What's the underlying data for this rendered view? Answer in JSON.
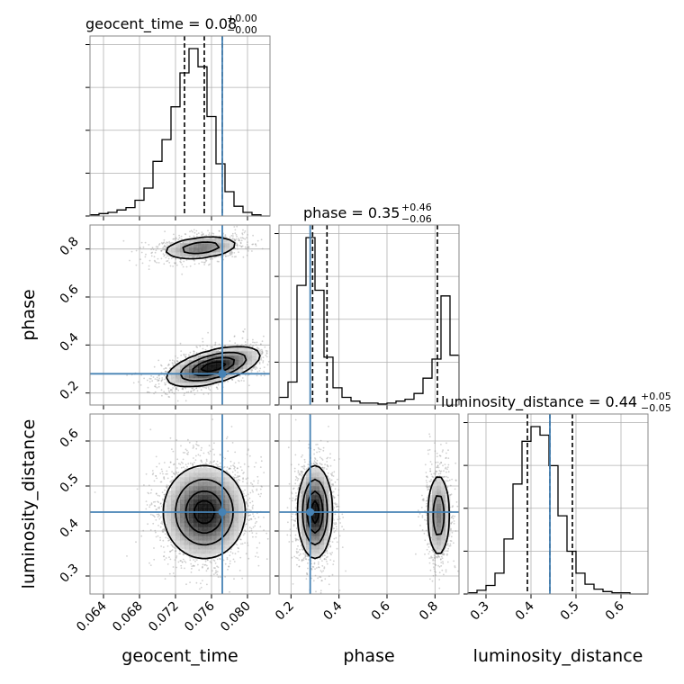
{
  "chart_data": {
    "type": "corner",
    "parameters": [
      {
        "name": "geocent_time",
        "label": "geocent_time",
        "range": [
          0.0625,
          0.0825
        ],
        "ticks": [
          0.064,
          0.068,
          0.072,
          0.076,
          0.08
        ],
        "tick_labels": [
          "0.064",
          "0.068",
          "0.072",
          "0.076",
          "0.080"
        ],
        "truth": 0.0772,
        "quantiles": [
          0.073,
          0.0752,
          0.0772
        ]
      },
      {
        "name": "phase",
        "label": "phase",
        "range": [
          0.15,
          0.9
        ],
        "ticks": [
          0.2,
          0.4,
          0.6,
          0.8
        ],
        "tick_labels": [
          "0.2",
          "0.4",
          "0.6",
          "0.8"
        ],
        "truth": 0.28,
        "quantiles": [
          0.29,
          0.35,
          0.81
        ]
      },
      {
        "name": "luminosity_distance",
        "label": "luminosity_distance",
        "range": [
          0.26,
          0.66
        ],
        "ticks": [
          0.3,
          0.4,
          0.5,
          0.6
        ],
        "tick_labels": [
          "0.3",
          "0.4",
          "0.5",
          "0.6"
        ],
        "truth": 0.442,
        "quantiles": [
          0.392,
          0.442,
          0.492
        ]
      }
    ],
    "titles": [
      {
        "base": "geocent_time = 0.08",
        "sup": "+0.00",
        "sub": "−0.00"
      },
      {
        "base": "phase = 0.35",
        "sup": "+0.46",
        "sub": "−0.06"
      },
      {
        "base": "luminosity_distance = 0.44",
        "sup": "+0.05",
        "sub": "−0.05"
      }
    ],
    "histograms": [
      {
        "param": "geocent_time",
        "edges_start": 0.0625,
        "bin_width": 0.001,
        "counts": [
          1,
          2,
          3,
          5,
          7,
          13,
          23,
          45,
          63,
          90,
          118,
          138,
          123,
          82,
          43,
          20,
          8,
          3,
          1,
          0
        ]
      },
      {
        "param": "phase",
        "edges_start": 0.15,
        "bin_width": 0.0375,
        "counts": [
          8,
          24,
          125,
          175,
          120,
          50,
          18,
          8,
          4,
          2,
          2,
          1,
          2,
          4,
          6,
          12,
          28,
          48,
          114,
          52
        ]
      },
      {
        "param": "luminosity_distance",
        "edges_start": 0.26,
        "bin_width": 0.02,
        "counts": [
          1,
          3,
          7,
          17,
          45,
          90,
          125,
          137,
          130,
          105,
          64,
          35,
          17,
          8,
          4,
          2,
          1,
          1,
          0,
          0
        ]
      }
    ],
    "density_modes": {
      "geocent_time_phase": [
        {
          "center": [
            0.0748,
            0.805
          ],
          "sigma": [
            0.0022,
            0.025
          ],
          "rho": 0.3,
          "weight": 0.35
        },
        {
          "center": [
            0.0762,
            0.31
          ],
          "sigma": [
            0.0025,
            0.04
          ],
          "rho": 0.55,
          "weight": 0.65
        }
      ],
      "geocent_time_luminosity_distance": [
        {
          "center": [
            0.0752,
            0.442
          ],
          "sigma": [
            0.0022,
            0.05
          ],
          "rho": 0.0,
          "weight": 1.0
        }
      ],
      "phase_luminosity_distance": [
        {
          "center": [
            0.3,
            0.442
          ],
          "sigma": [
            0.035,
            0.05
          ],
          "rho": 0.0,
          "weight": 0.65
        },
        {
          "center": [
            0.815,
            0.435
          ],
          "sigma": [
            0.025,
            0.05
          ],
          "rho": 0.0,
          "weight": 0.35
        }
      ]
    },
    "grid": true,
    "truth_color": "#4682b4",
    "line_color": "#000000",
    "scatter_color": "#9a9a9a"
  }
}
